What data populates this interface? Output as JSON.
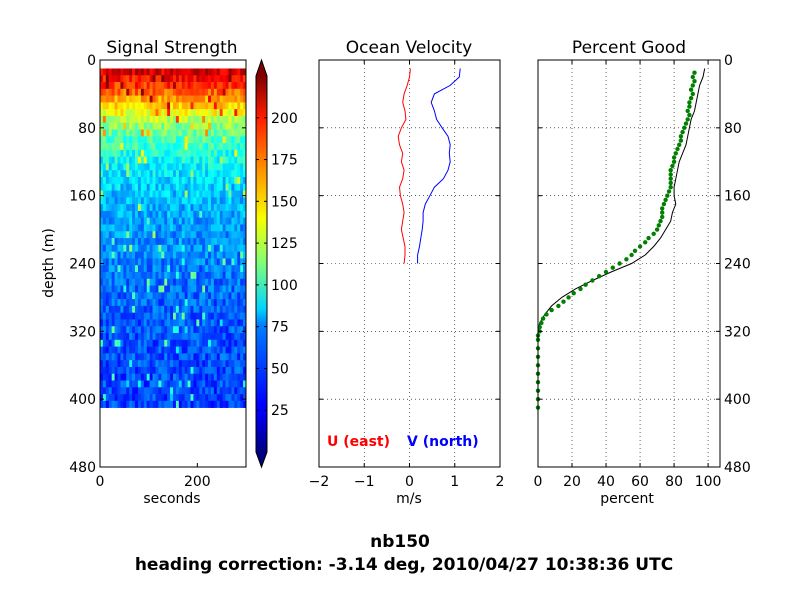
{
  "figure": {
    "suptitle_line1": "nb150",
    "suptitle_line2": "heading correction: -3.14 deg, 2010/04/27 10:38:36 UTC"
  },
  "chart_data": [
    {
      "type": "heatmap",
      "title": "Signal Strength",
      "xlabel": "seconds",
      "ylabel": "depth (m)",
      "xlim": [
        0,
        300
      ],
      "ylim": [
        480,
        0
      ],
      "xticks": [
        "0",
        "200"
      ],
      "yticks": [
        "0",
        "80",
        "160",
        "240",
        "320",
        "400",
        "480"
      ],
      "data_depth_range": [
        10,
        410
      ],
      "colorbar": {
        "colormap": "jet",
        "range": [
          0,
          225
        ],
        "ticks": [
          "25",
          "50",
          "75",
          "100",
          "125",
          "150",
          "175",
          "200"
        ]
      },
      "profile": [
        {
          "depth": 10,
          "value": 205
        },
        {
          "depth": 30,
          "value": 180
        },
        {
          "depth": 50,
          "value": 150
        },
        {
          "depth": 70,
          "value": 120
        },
        {
          "depth": 90,
          "value": 100
        },
        {
          "depth": 110,
          "value": 88
        },
        {
          "depth": 140,
          "value": 75
        },
        {
          "depth": 180,
          "value": 65
        },
        {
          "depth": 240,
          "value": 55
        },
        {
          "depth": 300,
          "value": 48
        },
        {
          "depth": 410,
          "value": 42
        }
      ]
    },
    {
      "type": "line",
      "title": "Ocean Velocity",
      "xlabel": "m/s",
      "xlim": [
        -2,
        2
      ],
      "ylim": [
        480,
        0
      ],
      "xticks": [
        "−2",
        "−1",
        "0",
        "1",
        "2"
      ],
      "grid": true,
      "series": [
        {
          "name": "U (east)",
          "color": "#ff0000",
          "depth": [
            10,
            20,
            30,
            40,
            50,
            60,
            70,
            80,
            90,
            100,
            110,
            120,
            130,
            140,
            150,
            160,
            170,
            180,
            190,
            200,
            210,
            220,
            230,
            240
          ],
          "values": [
            0.02,
            0.0,
            -0.05,
            -0.12,
            -0.15,
            -0.1,
            -0.08,
            -0.18,
            -0.25,
            -0.22,
            -0.15,
            -0.18,
            -0.12,
            -0.15,
            -0.22,
            -0.2,
            -0.15,
            -0.12,
            -0.15,
            -0.18,
            -0.14,
            -0.1,
            -0.1,
            -0.12
          ]
        },
        {
          "name": "V (north)",
          "color": "#0000ff",
          "depth": [
            10,
            20,
            30,
            40,
            50,
            60,
            70,
            80,
            90,
            100,
            110,
            120,
            130,
            140,
            150,
            160,
            170,
            180,
            190,
            200,
            210,
            220,
            230,
            240
          ],
          "values": [
            1.12,
            1.1,
            0.9,
            0.55,
            0.48,
            0.55,
            0.6,
            0.72,
            0.85,
            0.9,
            0.88,
            0.9,
            0.85,
            0.75,
            0.55,
            0.45,
            0.35,
            0.3,
            0.3,
            0.28,
            0.25,
            0.22,
            0.18,
            0.18
          ]
        }
      ],
      "legend": [
        {
          "label": "U (east)",
          "color": "#ff0000"
        },
        {
          "label": "V (north)",
          "color": "#0000ff"
        }
      ]
    },
    {
      "type": "scatter",
      "title": "Percent Good",
      "xlabel": "percent",
      "xlim": [
        0,
        100
      ],
      "ylim": [
        480,
        0
      ],
      "xticks": [
        "0",
        "20",
        "40",
        "60",
        "80",
        "100"
      ],
      "yticks": [
        "0",
        "80",
        "160",
        "240",
        "320",
        "400",
        "480"
      ],
      "grid": true,
      "line": {
        "color": "#000000",
        "depth": [
          10,
          20,
          30,
          40,
          50,
          60,
          70,
          80,
          90,
          100,
          110,
          120,
          130,
          140,
          150,
          160,
          170,
          180,
          190,
          200,
          210,
          220,
          230,
          240,
          250,
          260,
          270,
          280,
          290,
          300,
          310,
          320,
          330,
          340,
          360,
          380,
          410
        ],
        "values": [
          98,
          97,
          95,
          94,
          93,
          92,
          90,
          89,
          88,
          87,
          85,
          83,
          82,
          81,
          80,
          80,
          81,
          79,
          78,
          75,
          72,
          68,
          63,
          55,
          43,
          32,
          22,
          14,
          8,
          4,
          1,
          0,
          0,
          0,
          0,
          0,
          0
        ]
      },
      "points": {
        "color": "#007f00",
        "depth": [
          15,
          20,
          25,
          30,
          35,
          40,
          45,
          50,
          55,
          60,
          65,
          70,
          75,
          80,
          85,
          90,
          95,
          100,
          105,
          110,
          115,
          120,
          125,
          130,
          135,
          140,
          145,
          150,
          155,
          160,
          165,
          170,
          175,
          180,
          185,
          190,
          195,
          200,
          205,
          210,
          215,
          220,
          225,
          230,
          235,
          240,
          245,
          250,
          255,
          260,
          265,
          270,
          275,
          280,
          285,
          290,
          295,
          300,
          305,
          310,
          315,
          320,
          325,
          330,
          340,
          350,
          360,
          370,
          380,
          390,
          400,
          410
        ],
        "values": [
          92,
          91,
          92,
          91,
          90,
          91,
          90,
          89,
          89,
          88,
          89,
          88,
          87,
          86,
          85,
          84,
          84,
          83,
          82,
          81,
          80,
          80,
          79,
          78,
          78,
          78,
          78,
          78,
          77,
          76,
          75,
          74,
          73,
          73,
          73,
          72,
          71,
          70,
          68,
          65,
          63,
          60,
          57,
          55,
          52,
          48,
          44,
          40,
          36,
          32,
          28,
          25,
          21,
          18,
          15,
          12,
          8,
          5,
          3,
          2,
          1,
          1,
          0,
          0,
          0,
          0,
          0,
          0,
          0,
          0,
          0,
          0
        ]
      }
    }
  ]
}
